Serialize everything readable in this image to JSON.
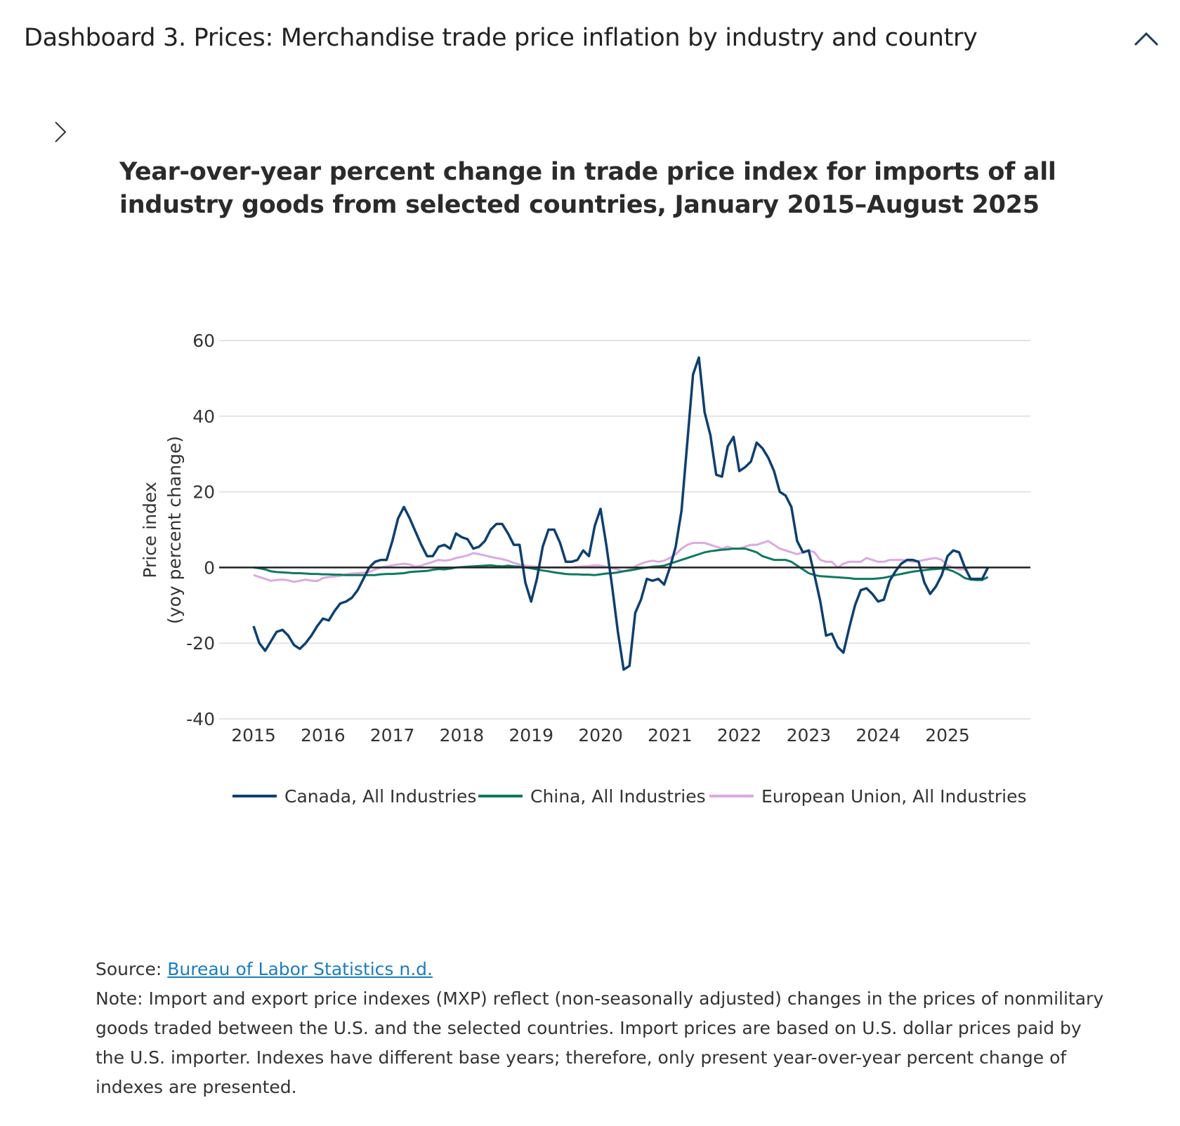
{
  "header": {
    "title": "Dashboard 3. Prices: Merchandise trade price inflation by industry and country",
    "collapse_icon": "chevron-up-icon",
    "expand_icon": "chevron-right-icon"
  },
  "footer": {
    "source_label": "Source:",
    "source_link": "Bureau of Labor Statistics n.d.",
    "note": "Note: Import and export price indexes (MXP) reflect (non-seasonally adjusted) changes in the prices of nonmilitary goods traded between the U.S. and the selected countries. Import prices are based on U.S. dollar prices paid by the U.S. importer. Indexes have different base years; therefore, only present year-over-year percent change of indexes are presented.",
    "link_color": "#1a7dc0"
  },
  "chart_data": {
    "type": "line",
    "title": "Year-over-year percent change in trade price index for imports of all industry goods from selected countries, January 2015–August 2025",
    "ylabel_line1": "Price index",
    "ylabel_line2": "(yoy percent change)",
    "xlabel": "",
    "x_start": "2015-01",
    "x_end": "2025-08",
    "x_frequency": "monthly",
    "xticks": [
      "2015",
      "2016",
      "2017",
      "2018",
      "2019",
      "2020",
      "2021",
      "2022",
      "2023",
      "2024",
      "2025"
    ],
    "yticks": [
      60,
      40,
      20,
      0,
      -20,
      -40
    ],
    "ylim": [
      -40,
      60
    ],
    "grid": true,
    "legend_position": "bottom",
    "series": [
      {
        "name": "Canada, All Industries",
        "color": "#0e3f70",
        "values": [
          -15.5,
          -20,
          -22,
          -19.5,
          -17,
          -16.5,
          -18,
          -20.5,
          -21.5,
          -20,
          -18,
          -15.5,
          -13.5,
          -14,
          -11.5,
          -9.5,
          -9,
          -8,
          -6,
          -3,
          0,
          1.5,
          2,
          2,
          7,
          13,
          16,
          13,
          9.5,
          6,
          3,
          3,
          5.5,
          6,
          5,
          9,
          8,
          7.5,
          5,
          5.5,
          7,
          10,
          11.5,
          11.5,
          9,
          6,
          6,
          -4,
          -9,
          -3,
          5.5,
          10,
          10,
          6.5,
          1.5,
          1.5,
          2,
          4.5,
          3,
          11,
          15.5,
          6,
          -5,
          -17,
          -27,
          -26,
          -12,
          -8.5,
          -3,
          -3.5,
          -3,
          -4.5,
          0,
          5.5,
          15,
          33,
          51,
          55.5,
          41,
          35,
          24.5,
          24,
          32,
          34.5,
          25.5,
          26.5,
          28,
          33,
          31.5,
          29,
          25.5,
          20,
          19,
          16,
          7,
          4,
          4.5,
          -2,
          -9,
          -18,
          -17.5,
          -21,
          -22.5,
          -16,
          -10,
          -6,
          -5.5,
          -7,
          -9,
          -8.5,
          -3.5,
          -1,
          1,
          2,
          2,
          1.5,
          -4,
          -7,
          -5,
          -2,
          3,
          4.5,
          4,
          0,
          -3,
          -3,
          -3,
          0
        ]
      },
      {
        "name": "China, All Industries",
        "color": "#0d7a5f",
        "values": [
          0,
          -0.2,
          -0.5,
          -1,
          -1.2,
          -1.3,
          -1.4,
          -1.5,
          -1.5,
          -1.6,
          -1.7,
          -1.7,
          -1.8,
          -1.8,
          -1.9,
          -1.9,
          -2,
          -2,
          -2,
          -2,
          -2,
          -2,
          -1.8,
          -1.7,
          -1.7,
          -1.6,
          -1.5,
          -1.2,
          -1.1,
          -1,
          -0.9,
          -0.6,
          -0.4,
          -0.5,
          -0.3,
          0,
          0.1,
          0.2,
          0.3,
          0.4,
          0.5,
          0.6,
          0.4,
          0.3,
          0.5,
          0.3,
          0.2,
          0,
          -0.2,
          -0.5,
          -0.8,
          -1,
          -1.3,
          -1.5,
          -1.7,
          -1.8,
          -1.8,
          -1.9,
          -1.9,
          -2,
          -1.8,
          -1.6,
          -1.5,
          -1.3,
          -1,
          -0.8,
          -0.5,
          -0.2,
          0,
          0.2,
          0.3,
          0.5,
          1,
          1.5,
          2,
          2.5,
          3,
          3.5,
          4,
          4.3,
          4.5,
          4.7,
          4.8,
          5,
          5,
          5,
          4.5,
          4,
          3,
          2.5,
          2,
          2,
          2,
          1.5,
          0.5,
          -0.5,
          -1.5,
          -2,
          -2.3,
          -2.4,
          -2.5,
          -2.6,
          -2.7,
          -2.8,
          -3,
          -3,
          -3,
          -3,
          -2.9,
          -2.7,
          -2.4,
          -2,
          -1.7,
          -1.4,
          -1.1,
          -0.9,
          -0.7,
          -0.5,
          -0.4,
          -0.3,
          -0.5,
          -1,
          -1.8,
          -2.8,
          -3.2,
          -3.3,
          -3.3,
          -2.5
        ]
      },
      {
        "name": "European Union, All Industries",
        "color": "#dca9e1",
        "values": [
          -2,
          -2.5,
          -3,
          -3.5,
          -3.3,
          -3.2,
          -3.4,
          -3.8,
          -3.5,
          -3.2,
          -3.5,
          -3.6,
          -2.8,
          -2.5,
          -2.4,
          -2.2,
          -1.8,
          -1.6,
          -1.5,
          -1.4,
          -1.2,
          -0.5,
          0,
          0.3,
          0.6,
          0.8,
          1,
          0.8,
          0.2,
          0.5,
          1,
          1.5,
          2,
          1.8,
          2,
          2.5,
          2.8,
          3.2,
          3.8,
          3.5,
          3.2,
          2.8,
          2.5,
          2.2,
          1.8,
          1.2,
          0.8,
          0.5,
          0.3,
          0.2,
          0,
          0,
          0,
          0,
          0,
          0,
          0.2,
          0.3,
          0.4,
          0.6,
          0.5,
          0.2,
          -0.2,
          -0.6,
          -1,
          -0.5,
          0.3,
          1,
          1.5,
          1.8,
          1.5,
          1.8,
          2.5,
          3.5,
          5,
          6,
          6.5,
          6.5,
          6.5,
          6,
          5.5,
          5,
          5.5,
          5,
          5,
          5.5,
          6,
          6,
          6.5,
          7,
          6,
          5,
          4.5,
          4,
          3.5,
          4,
          4.5,
          4,
          2,
          1.5,
          1.5,
          0,
          1,
          1.5,
          1.5,
          1.5,
          2.5,
          2,
          1.5,
          1.5,
          2,
          2,
          2,
          1.8,
          1.5,
          1.7,
          2,
          2.3,
          2.5,
          2,
          0.5,
          0,
          -0.5,
          -0.5,
          0,
          0,
          0,
          0
        ]
      }
    ]
  }
}
